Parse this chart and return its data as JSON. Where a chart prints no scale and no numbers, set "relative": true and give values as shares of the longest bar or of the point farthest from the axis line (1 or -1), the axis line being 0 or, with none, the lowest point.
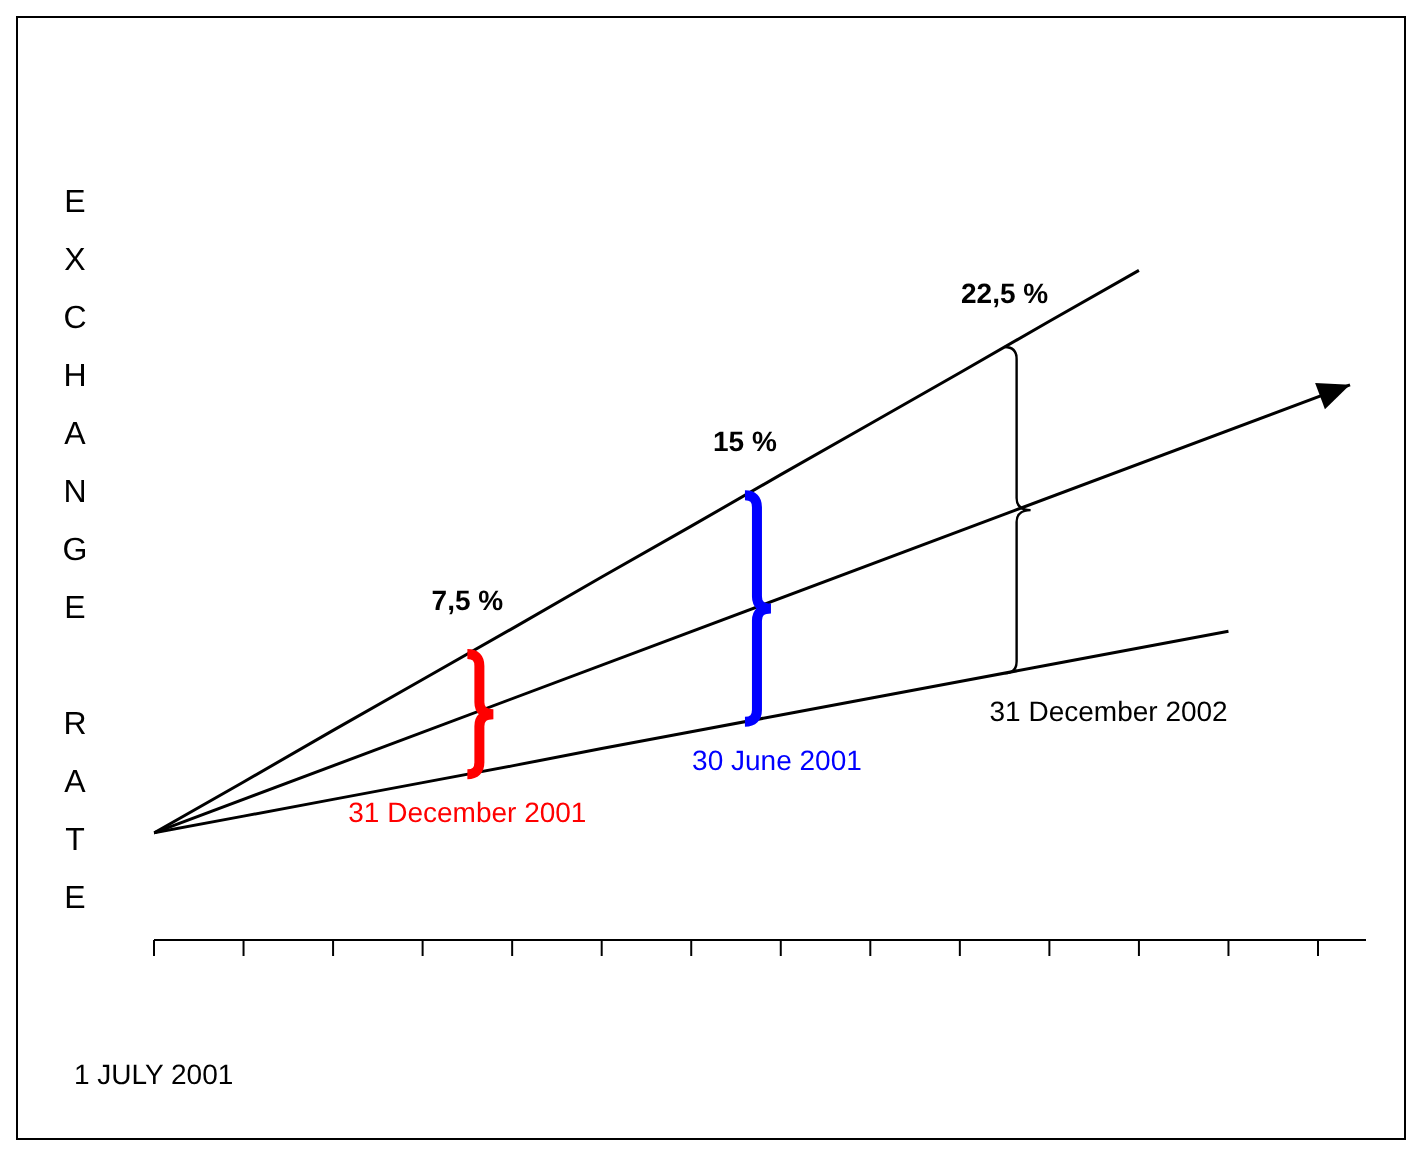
{
  "chart_data": {
    "type": "line",
    "relative": true,
    "xlabel": "1 JULY 2001",
    "ylabel": "EXCHANGE RATE",
    "categories": [
      null,
      null,
      null,
      null,
      null,
      null,
      null,
      null,
      null,
      null,
      null,
      null,
      null,
      null
    ],
    "marker": "none",
    "line_style": "solid",
    "series": [
      {
        "color": "#000000",
        "values": [
          0.16,
          0.236,
          0.313,
          0.389,
          0.465,
          0.542,
          0.618,
          0.695,
          0.771,
          0.847,
          0.924,
          1.0,
          null,
          null
        ]
      },
      {
        "color": "#000000",
        "values": [
          0.16,
          0.185,
          0.21,
          0.235,
          0.26,
          0.286,
          0.311,
          0.336,
          0.361,
          0.386,
          0.411,
          0.436,
          0.461,
          null
        ]
      }
    ],
    "annotations": [
      "7,5 %",
      "15 %",
      "22,5 %",
      "31 December 2001",
      "30 June 2001",
      "31 December 2002"
    ]
  }
}
